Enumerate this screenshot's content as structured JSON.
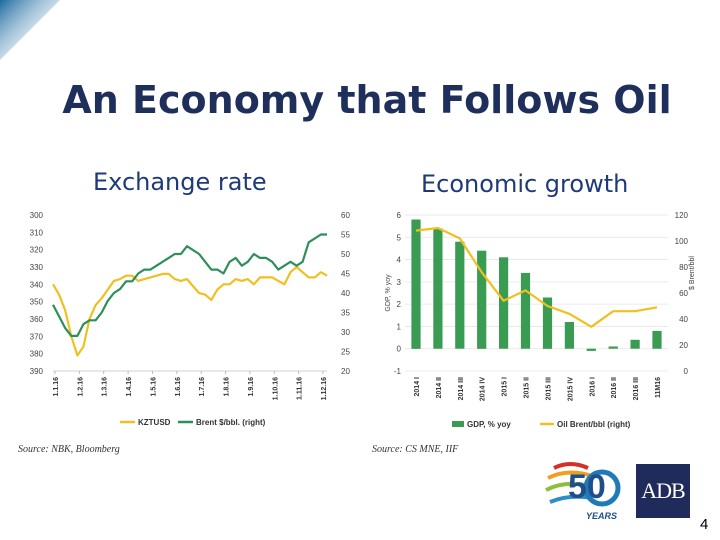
{
  "slide": {
    "title": "An Economy that Follows Oil",
    "left_subtitle": "Exchange rate",
    "right_subtitle": "Economic growth",
    "page_number": "4"
  },
  "logos": {
    "anniversary_text": "50",
    "anniversary_sub": "YEARS",
    "adb_text": "ADB"
  },
  "colors": {
    "title": "#1f2f5c",
    "subtitle": "#1f3a78",
    "kzt_line": "#f0c020",
    "brent_line": "#2f8f5b",
    "gdp_bar": "#3a9b52",
    "oil_line": "#f0c020",
    "adb_bg": "#1f2b5a"
  },
  "chart_data": [
    {
      "type": "line",
      "title": "Exchange rate",
      "source": "Source: NBK, Bloomberg",
      "x_tick_labels": [
        "1.1.16",
        "1.2.16",
        "1.3.16",
        "1.4.16",
        "1.5.16",
        "1.6.16",
        "1.7.16",
        "1.8.16",
        "1.9.16",
        "1.10.16",
        "1.11.16",
        "1.12.16"
      ],
      "y_left": {
        "label": "KZTUSD",
        "ylim": [
          300,
          390
        ],
        "inverted": true,
        "ticks": [
          300,
          310,
          320,
          330,
          340,
          350,
          360,
          370,
          380,
          390
        ]
      },
      "y_right": {
        "label": "Brent $/bbl (right)",
        "ylim": [
          20,
          60
        ],
        "ticks": [
          20,
          25,
          30,
          35,
          40,
          45,
          50,
          55,
          60
        ]
      },
      "series": [
        {
          "name": "KZTUSD",
          "axis": "left",
          "values": [
            340,
            346,
            355,
            370,
            381,
            376,
            360,
            352,
            348,
            343,
            338,
            337,
            335,
            335,
            338,
            337,
            336,
            335,
            334,
            334,
            337,
            338,
            337,
            341,
            345,
            346,
            349,
            343,
            340,
            340,
            337,
            338,
            337,
            340,
            336,
            336,
            336,
            338,
            340,
            333,
            330,
            333,
            336,
            336,
            333,
            335
          ]
        },
        {
          "name": "Brent $/bbl. (right)",
          "axis": "right",
          "values": [
            37,
            34,
            31,
            29,
            29,
            32,
            33,
            33,
            35,
            38,
            40,
            41,
            43,
            43,
            45,
            46,
            46,
            47,
            48,
            49,
            50,
            50,
            52,
            51,
            50,
            48,
            46,
            46,
            45,
            48,
            49,
            47,
            48,
            50,
            49,
            49,
            48,
            46,
            47,
            48,
            47,
            48,
            53,
            54,
            55,
            55
          ]
        }
      ]
    },
    {
      "type": "bar",
      "title": "Economic growth",
      "source": "Source: CS MNE, IIF",
      "categories": [
        "2014 I",
        "2014 II",
        "2014 III",
        "2014 IV",
        "2015 I",
        "2015 II",
        "2015 III",
        "2015 IV",
        "2016 I",
        "2016 II",
        "2016 III",
        "11M16"
      ],
      "y_left": {
        "label": "GDP, % yoy",
        "ylim": [
          -1,
          6
        ],
        "ticks": [
          -1,
          0,
          1,
          2,
          3,
          4,
          5,
          6
        ]
      },
      "y_right": {
        "label": "$ Brent/bbl",
        "ylim": [
          0,
          120
        ],
        "ticks": [
          0,
          20,
          40,
          60,
          80,
          100,
          120
        ]
      },
      "series": [
        {
          "name": "GDP, % yoy",
          "type": "bar",
          "axis": "left",
          "values": [
            5.8,
            5.4,
            4.8,
            4.4,
            4.1,
            3.4,
            2.3,
            1.2,
            -0.1,
            0.1,
            0.4,
            0.8
          ]
        },
        {
          "name": "Oil Brent/bbl (right)",
          "type": "line",
          "axis": "right",
          "values": [
            108,
            110,
            102,
            76,
            54,
            62,
            50,
            44,
            34,
            46,
            46,
            49
          ]
        }
      ]
    }
  ]
}
